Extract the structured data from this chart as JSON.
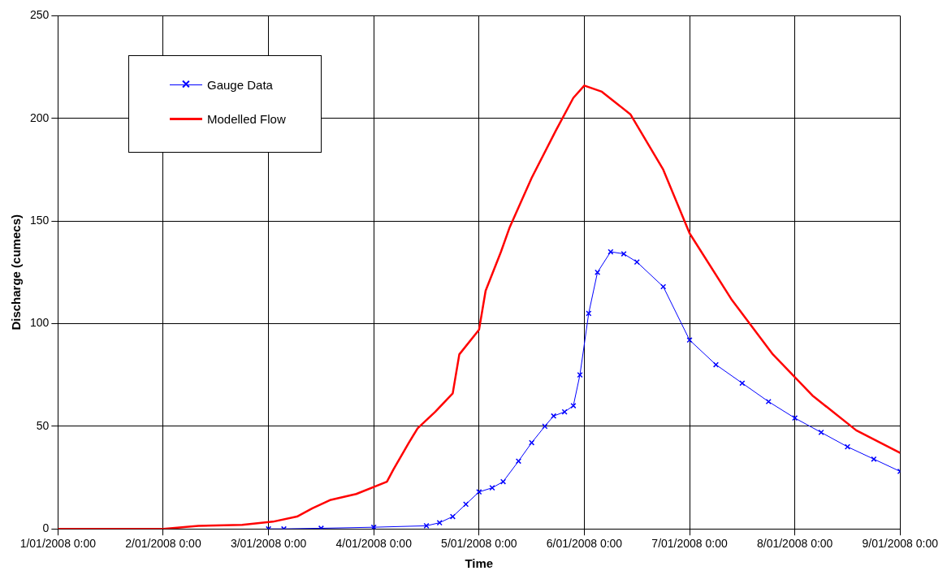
{
  "chart_data": {
    "type": "line",
    "xlabel": "Time",
    "ylabel": "Discharge (cumecs)",
    "xlim": [
      "2008-01-01T00:00",
      "2008-01-09T00:00"
    ],
    "xticks": [
      {
        "value": "2008-01-01T00:00",
        "label": "1/01/2008 0:00"
      },
      {
        "value": "2008-01-02T00:00",
        "label": "2/01/2008 0:00"
      },
      {
        "value": "2008-01-03T00:00",
        "label": "3/01/2008 0:00"
      },
      {
        "value": "2008-01-04T00:00",
        "label": "4/01/2008 0:00"
      },
      {
        "value": "2008-01-05T00:00",
        "label": "5/01/2008 0:00"
      },
      {
        "value": "2008-01-06T00:00",
        "label": "6/01/2008 0:00"
      },
      {
        "value": "2008-01-07T00:00",
        "label": "7/01/2008 0:00"
      },
      {
        "value": "2008-01-08T00:00",
        "label": "8/01/2008 0:00"
      },
      {
        "value": "2008-01-09T00:00",
        "label": "9/01/2008 0:00"
      }
    ],
    "ylim": [
      0,
      250
    ],
    "yticks": [
      0,
      50,
      100,
      150,
      200,
      250
    ],
    "grid": true,
    "legend": "top left",
    "series": [
      {
        "name": "Gauge Data",
        "color": "#0000ff",
        "marker": "cross",
        "x": [
          "2008-01-03T00:00",
          "2008-01-03T03:30",
          "2008-01-03T12:00",
          "2008-01-04T00:00",
          "2008-01-04T12:00",
          "2008-01-04T15:00",
          "2008-01-04T18:00",
          "2008-01-04T21:00",
          "2008-01-05T00:00",
          "2008-01-05T03:00",
          "2008-01-05T05:30",
          "2008-01-05T09:00",
          "2008-01-05T12:00",
          "2008-01-05T15:00",
          "2008-01-05T17:00",
          "2008-01-05T19:30",
          "2008-01-05T21:30",
          "2008-01-05T23:00",
          "2008-01-06T01:00",
          "2008-01-06T03:00",
          "2008-01-06T06:00",
          "2008-01-06T09:00",
          "2008-01-06T12:00",
          "2008-01-06T18:00",
          "2008-01-07T00:00",
          "2008-01-07T06:00",
          "2008-01-07T12:00",
          "2008-01-07T18:00",
          "2008-01-08T00:00",
          "2008-01-08T06:00",
          "2008-01-08T12:00",
          "2008-01-08T18:00",
          "2008-01-09T00:00"
        ],
        "values": [
          0,
          0,
          0.3,
          0.8,
          1.5,
          3,
          6,
          12,
          18,
          20,
          23,
          33,
          42,
          50,
          55,
          57,
          60,
          75,
          105,
          125,
          135,
          134,
          130,
          118,
          92,
          80,
          71,
          62,
          54,
          47,
          40,
          34,
          28
        ]
      },
      {
        "name": "Modelled Flow",
        "color": "#ff0000",
        "marker": "none",
        "x": [
          "2008-01-01T00:00",
          "2008-01-02T00:00",
          "2008-01-02T08:00",
          "2008-01-02T18:00",
          "2008-01-03T01:00",
          "2008-01-03T06:30",
          "2008-01-03T10:00",
          "2008-01-03T14:00",
          "2008-01-03T20:00",
          "2008-01-04T03:00",
          "2008-01-04T04:30",
          "2008-01-04T08:00",
          "2008-01-04T10:00",
          "2008-01-04T14:00",
          "2008-01-04T18:00",
          "2008-01-04T19:30",
          "2008-01-05T00:00",
          "2008-01-05T01:30",
          "2008-01-05T05:00",
          "2008-01-05T07:00",
          "2008-01-05T12:00",
          "2008-01-05T17:30",
          "2008-01-05T21:30",
          "2008-01-06T00:00",
          "2008-01-06T04:00",
          "2008-01-06T10:30",
          "2008-01-06T18:00",
          "2008-01-07T00:00",
          "2008-01-07T09:30",
          "2008-01-07T19:00",
          "2008-01-08T04:00",
          "2008-01-08T14:00",
          "2008-01-09T00:00"
        ],
        "values": [
          0,
          0,
          1.5,
          2,
          3.5,
          6,
          10,
          14,
          17,
          23,
          29,
          42,
          49,
          57,
          66,
          85,
          97,
          116,
          135,
          147,
          171,
          194,
          210,
          216,
          213,
          202,
          175,
          144,
          112,
          85,
          65,
          48,
          37
        ]
      }
    ]
  }
}
